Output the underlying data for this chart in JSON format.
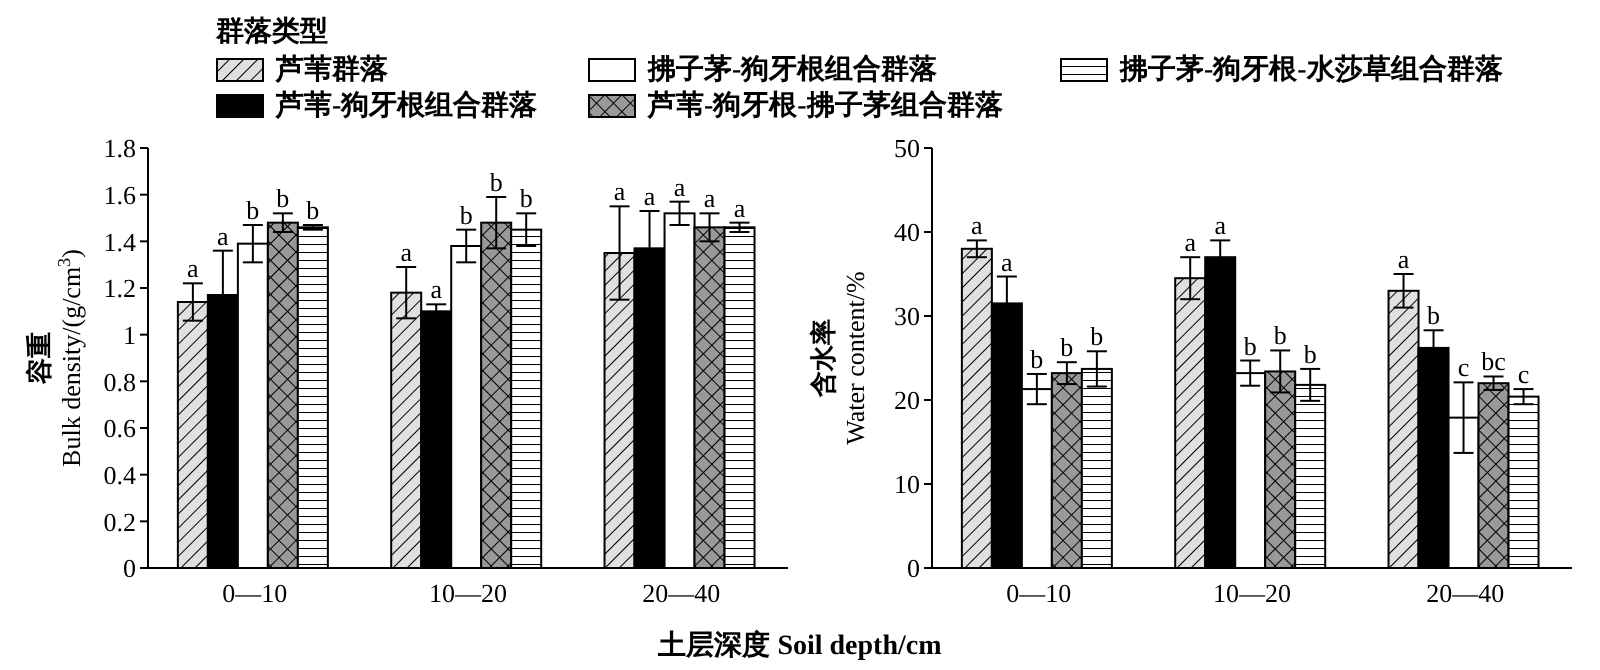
{
  "chart_data": [
    {
      "type": "bar",
      "legend_title": "群落类型",
      "legend": "top",
      "xlabel": "土层深度 Soil depth/cm",
      "ylabel": "容重\nBulk density/(g/cm$^{3}$)",
      "categories": [
        "0—10",
        "10—20",
        "20—40"
      ],
      "ylim": [
        0,
        1.8
      ],
      "yticks": [
        0,
        0.2,
        0.4,
        0.6,
        0.8,
        1.0,
        1.2,
        1.4,
        1.6,
        1.8
      ],
      "grid": false,
      "series": [
        {
          "name": "芦苇群落",
          "color": "#e0e0e0",
          "values": [
            1.14,
            1.18,
            1.35
          ],
          "errors": [
            0.08,
            0.11,
            0.2
          ],
          "value_labels": [
            "a",
            "a",
            "a"
          ]
        },
        {
          "name": "芦苇-狗牙根组合群落",
          "color": "#000000",
          "values": [
            1.17,
            1.1,
            1.37
          ],
          "errors": [
            0.19,
            0.03,
            0.16
          ],
          "value_labels": [
            "a",
            "a",
            "a"
          ]
        },
        {
          "name": "拂子茅-狗牙根组合群落",
          "color": "#ffffff",
          "values": [
            1.39,
            1.38,
            1.52
          ],
          "errors": [
            0.08,
            0.07,
            0.05
          ],
          "value_labels": [
            "b",
            "b",
            "a"
          ]
        },
        {
          "name": "芦苇-狗牙根-拂子茅组合群落",
          "color": "#999999",
          "values": [
            1.48,
            1.48,
            1.46
          ],
          "errors": [
            0.04,
            0.11,
            0.06
          ],
          "value_labels": [
            "b",
            "b",
            "a"
          ]
        },
        {
          "name": "拂子茅-狗牙根-水莎草组合群落",
          "color": "#ffffff",
          "values": [
            1.46,
            1.45,
            1.46
          ],
          "errors": [
            0.01,
            0.07,
            0.02
          ],
          "value_labels": [
            "b",
            "b",
            "a"
          ]
        }
      ]
    },
    {
      "type": "bar",
      "ylabel": "含水率\nWater content/%",
      "categories": [
        "0—10",
        "10—20",
        "20—40"
      ],
      "ylim": [
        0,
        50
      ],
      "yticks": [
        0,
        10,
        20,
        30,
        40,
        50
      ],
      "grid": false,
      "series": [
        {
          "color": "#e0e0e0",
          "values": [
            38,
            34.5,
            33
          ],
          "errors": [
            1,
            2.5,
            2
          ],
          "value_labels": [
            "a",
            "a",
            "a"
          ]
        },
        {
          "color": "#000000",
          "values": [
            31.5,
            37,
            26.2
          ],
          "errors": [
            3.2,
            2,
            2.1
          ],
          "value_labels": [
            "a",
            "a",
            "b"
          ]
        },
        {
          "color": "#ffffff",
          "values": [
            21.3,
            23.2,
            17.9
          ],
          "errors": [
            1.8,
            1.5,
            4.2
          ],
          "value_labels": [
            "b",
            "b",
            "c"
          ]
        },
        {
          "color": "#999999",
          "values": [
            23.2,
            23.4,
            22
          ],
          "errors": [
            1.3,
            2.5,
            0.8
          ],
          "value_labels": [
            "b",
            "b",
            "bc"
          ]
        },
        {
          "color": "#ffffff",
          "values": [
            23.7,
            21.8,
            20.4
          ],
          "errors": [
            2.1,
            1.9,
            0.9
          ],
          "value_labels": [
            "b",
            "b",
            "c"
          ]
        }
      ]
    }
  ]
}
